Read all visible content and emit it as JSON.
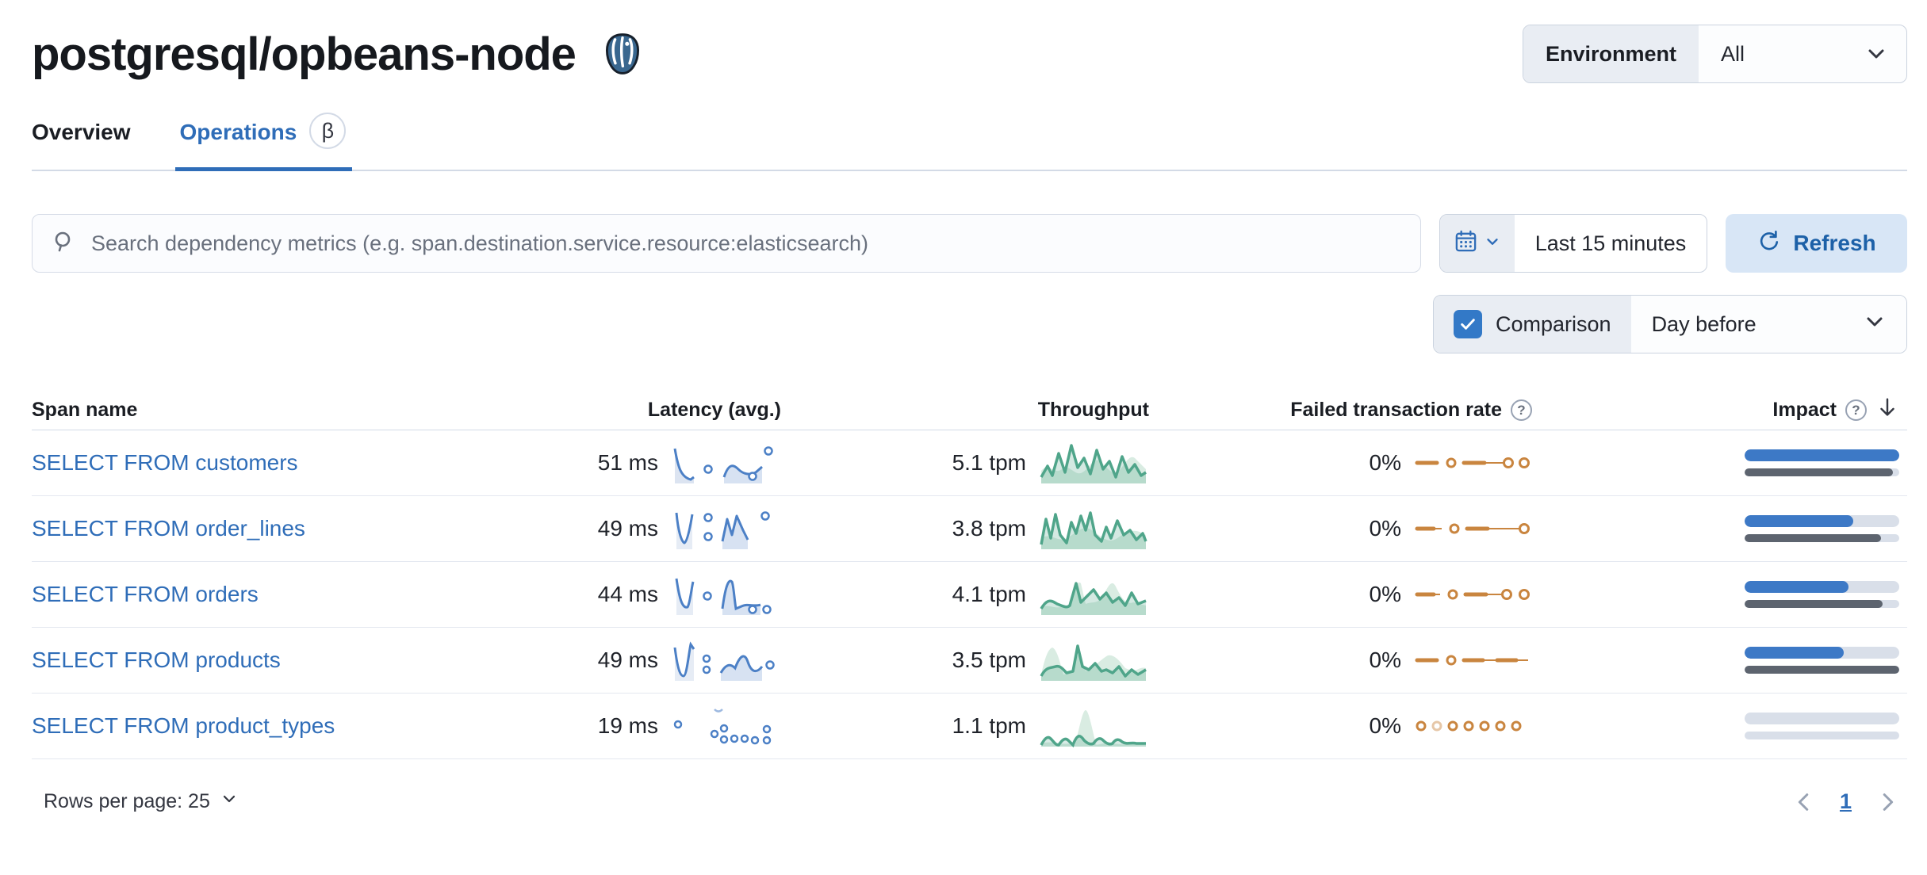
{
  "header": {
    "title": "postgresql/opbeans-node",
    "environment_label": "Environment",
    "environment_value": "All"
  },
  "tabs": [
    {
      "label": "Overview",
      "active": false
    },
    {
      "label": "Operations",
      "active": true,
      "badge": "β"
    }
  ],
  "controls": {
    "search_placeholder": "Search dependency metrics (e.g. span.destination.service.resource:elasticsearch)",
    "time_range": "Last 15 minutes",
    "refresh_label": "Refresh",
    "comparison_label": "Comparison",
    "comparison_checked": true,
    "comparison_value": "Day before"
  },
  "table": {
    "columns": [
      "Span name",
      "Latency (avg.)",
      "Throughput",
      "Failed transaction rate",
      "Impact"
    ],
    "sorted_by": "Impact",
    "sort_direction": "desc",
    "rows": [
      {
        "span_name": "SELECT FROM customers",
        "latency": "51 ms",
        "throughput": "5.1 tpm",
        "failed_rate": "0%",
        "impact_current_pct": 100,
        "impact_previous_pct": 96
      },
      {
        "span_name": "SELECT FROM order_lines",
        "latency": "49 ms",
        "throughput": "3.8 tpm",
        "failed_rate": "0%",
        "impact_current_pct": 70,
        "impact_previous_pct": 88
      },
      {
        "span_name": "SELECT FROM orders",
        "latency": "44 ms",
        "throughput": "4.1 tpm",
        "failed_rate": "0%",
        "impact_current_pct": 67,
        "impact_previous_pct": 89
      },
      {
        "span_name": "SELECT FROM products",
        "latency": "49 ms",
        "throughput": "3.5 tpm",
        "failed_rate": "0%",
        "impact_current_pct": 64,
        "impact_previous_pct": 100
      },
      {
        "span_name": "SELECT FROM product_types",
        "latency": "19 ms",
        "throughput": "1.1 tpm",
        "failed_rate": "0%",
        "impact_current_pct": 0,
        "impact_previous_pct": 0
      }
    ]
  },
  "footer": {
    "rows_per_page_label": "Rows per page: 25",
    "page": "1"
  },
  "colors": {
    "accent_blue": "#2F6DB8",
    "latency_spark_blue": "#4C80C6",
    "throughput_spark_green": "#4FA58A",
    "failed_spark_orange": "#C9853F",
    "impact_bar_blue": "#3D79C6",
    "impact_bar_gray": "#5D646F",
    "refresh_button_bg": "#D8E6F6"
  }
}
